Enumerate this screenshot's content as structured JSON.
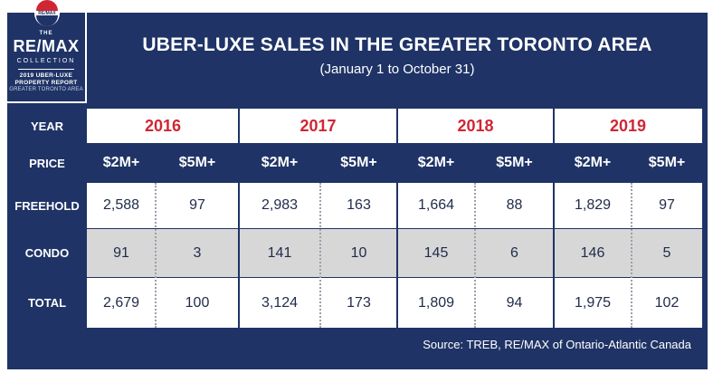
{
  "logo": {
    "badge": "RE/MAX",
    "the": "THE",
    "brand": "RE/MAX",
    "collection": "COLLECTION",
    "line1": "2019 UBER-LUXE",
    "line2": "PROPERTY REPORT",
    "line3": "GREATER TORONTO AREA"
  },
  "chart_data": {
    "type": "table",
    "title": "UBER-LUXE SALES IN THE GREATER TORONTO AREA",
    "subtitle": "(January 1 to October 31)",
    "year_label": "YEAR",
    "price_label": "PRICE",
    "years": [
      "2016",
      "2017",
      "2018",
      "2019"
    ],
    "price_bands": [
      "$2M+",
      "$5M+"
    ],
    "rows": [
      {
        "label": "FREEHOLD",
        "values": [
          "2,588",
          "97",
          "2,983",
          "163",
          "1,664",
          "88",
          "1,829",
          "97"
        ]
      },
      {
        "label": "CONDO",
        "values": [
          "91",
          "3",
          "141",
          "10",
          "145",
          "6",
          "146",
          "5"
        ]
      },
      {
        "label": "TOTAL",
        "values": [
          "2,679",
          "100",
          "3,124",
          "173",
          "1,809",
          "94",
          "1,975",
          "102"
        ]
      }
    ],
    "source": "Source: TREB, RE/MAX of Ontario-Atlantic Canada"
  },
  "colors": {
    "navy": "#1f3366",
    "red": "#d02634",
    "grey": "#d7d7d7",
    "white": "#ffffff"
  }
}
